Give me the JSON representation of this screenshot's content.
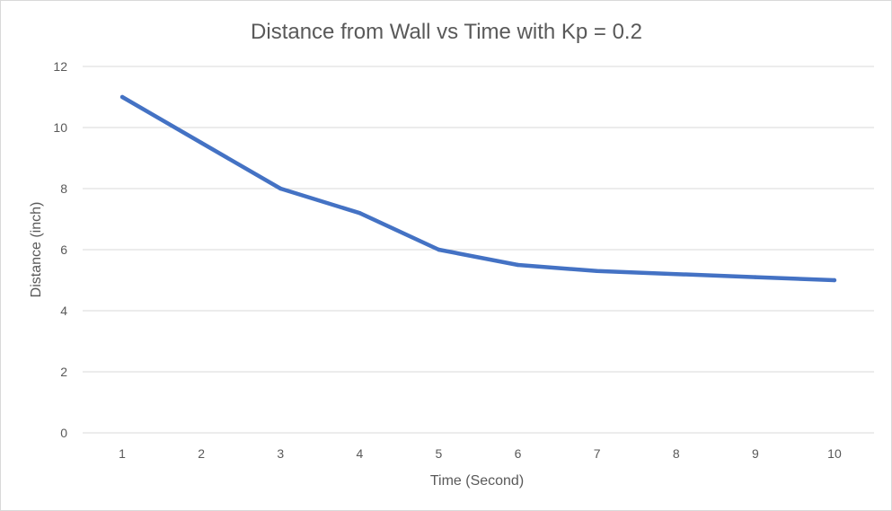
{
  "chart_data": {
    "type": "line",
    "title": "Distance from Wall vs Time with Kp = 0.2",
    "xlabel": "Time (Second)",
    "ylabel": "Distance (inch)",
    "categories": [
      "1",
      "2",
      "3",
      "4",
      "5",
      "6",
      "7",
      "8",
      "9",
      "10"
    ],
    "series": [
      {
        "values": [
          11,
          9.5,
          8,
          7.2,
          6,
          5.5,
          5.3,
          5.2,
          5.1,
          5.0
        ],
        "color": "#4472c4"
      }
    ],
    "ylim": [
      0,
      12
    ],
    "yticks": [
      "0",
      "2",
      "4",
      "6",
      "8",
      "10",
      "12"
    ],
    "grid": true,
    "legend": "none"
  }
}
